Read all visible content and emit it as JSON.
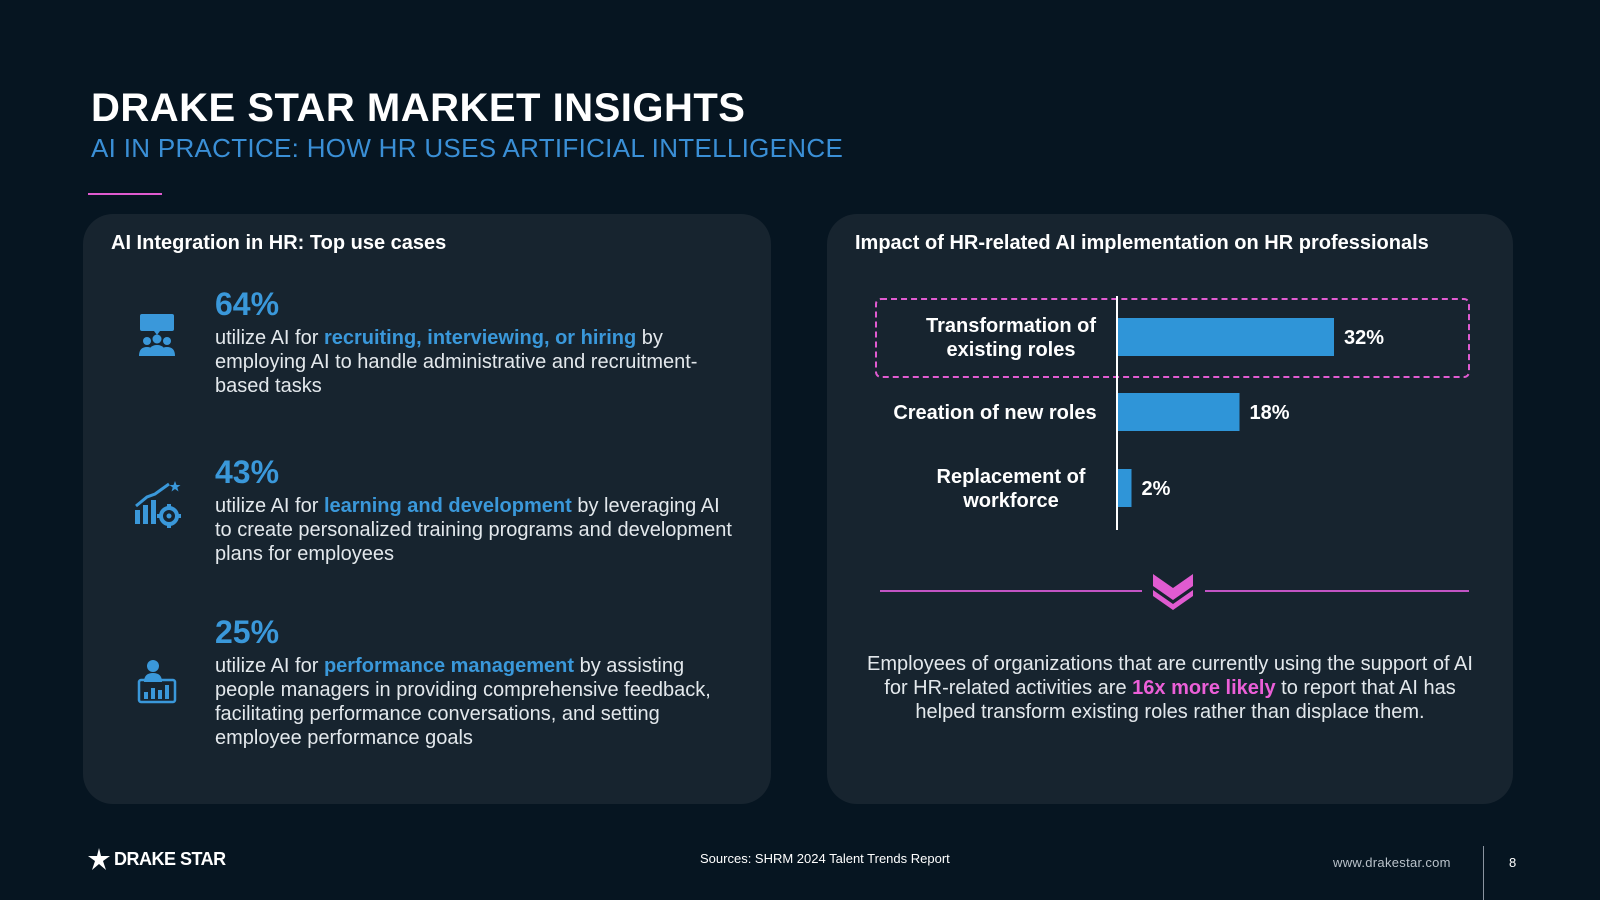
{
  "header": {
    "title": "DRAKE STAR MARKET INSIGHTS",
    "subtitle": "AI IN PRACTICE: HOW HR USES ARTIFICIAL INTELLIGENCE"
  },
  "left_panel": {
    "heading": "AI Integration in HR: Top use cases",
    "stats": [
      {
        "percent": "64%",
        "prefix": "utilize AI for ",
        "highlight": "recruiting, interviewing, or hiring",
        "suffix": " by employing AI to handle administrative and recruitment-based tasks",
        "icon": "team-presentation-icon"
      },
      {
        "percent": "43%",
        "prefix": "utilize AI for ",
        "highlight": "learning and development",
        "suffix": " by leveraging AI to create personalized training programs and development plans for employees",
        "icon": "growth-chart-gear-icon"
      },
      {
        "percent": "25%",
        "prefix": "utilize AI for ",
        "highlight": "performance management",
        "suffix": " by assisting people managers in providing comprehensive feedback, facilitating performance conversations, and setting employee performance goals",
        "icon": "performance-report-icon"
      }
    ]
  },
  "right_panel": {
    "heading": "Impact of HR-related AI implementation on HR professionals",
    "conclusion_prefix": "Employees of organizations that are currently using the support of AI for HR-related activities are ",
    "conclusion_highlight": "16x more likely",
    "conclusion_suffix": " to report that AI has helped transform existing roles rather than displace them."
  },
  "chart_data": {
    "type": "bar",
    "orientation": "horizontal",
    "categories": [
      [
        "Transformation of",
        "existing roles"
      ],
      [
        "Creation of new roles"
      ],
      [
        "Replacement of",
        "workforce"
      ]
    ],
    "values": [
      32,
      18,
      2
    ],
    "value_labels": [
      "32%",
      "18%",
      "2%"
    ],
    "xlim": [
      0,
      32
    ],
    "grid": false,
    "highlighted_category": 0,
    "colors": {
      "bar": "#2f95d8",
      "highlight_border": "#e05bd0"
    }
  },
  "footer": {
    "logo_text": "DRAKE STAR",
    "sources": "Sources: SHRM 2024 Talent Trends Report",
    "website": "www.drakestar.com",
    "page_number": "8"
  },
  "colors": {
    "background": "#061521",
    "panel": "#17242f",
    "accent_blue": "#3a98da",
    "accent_pink": "#e05bd0"
  }
}
